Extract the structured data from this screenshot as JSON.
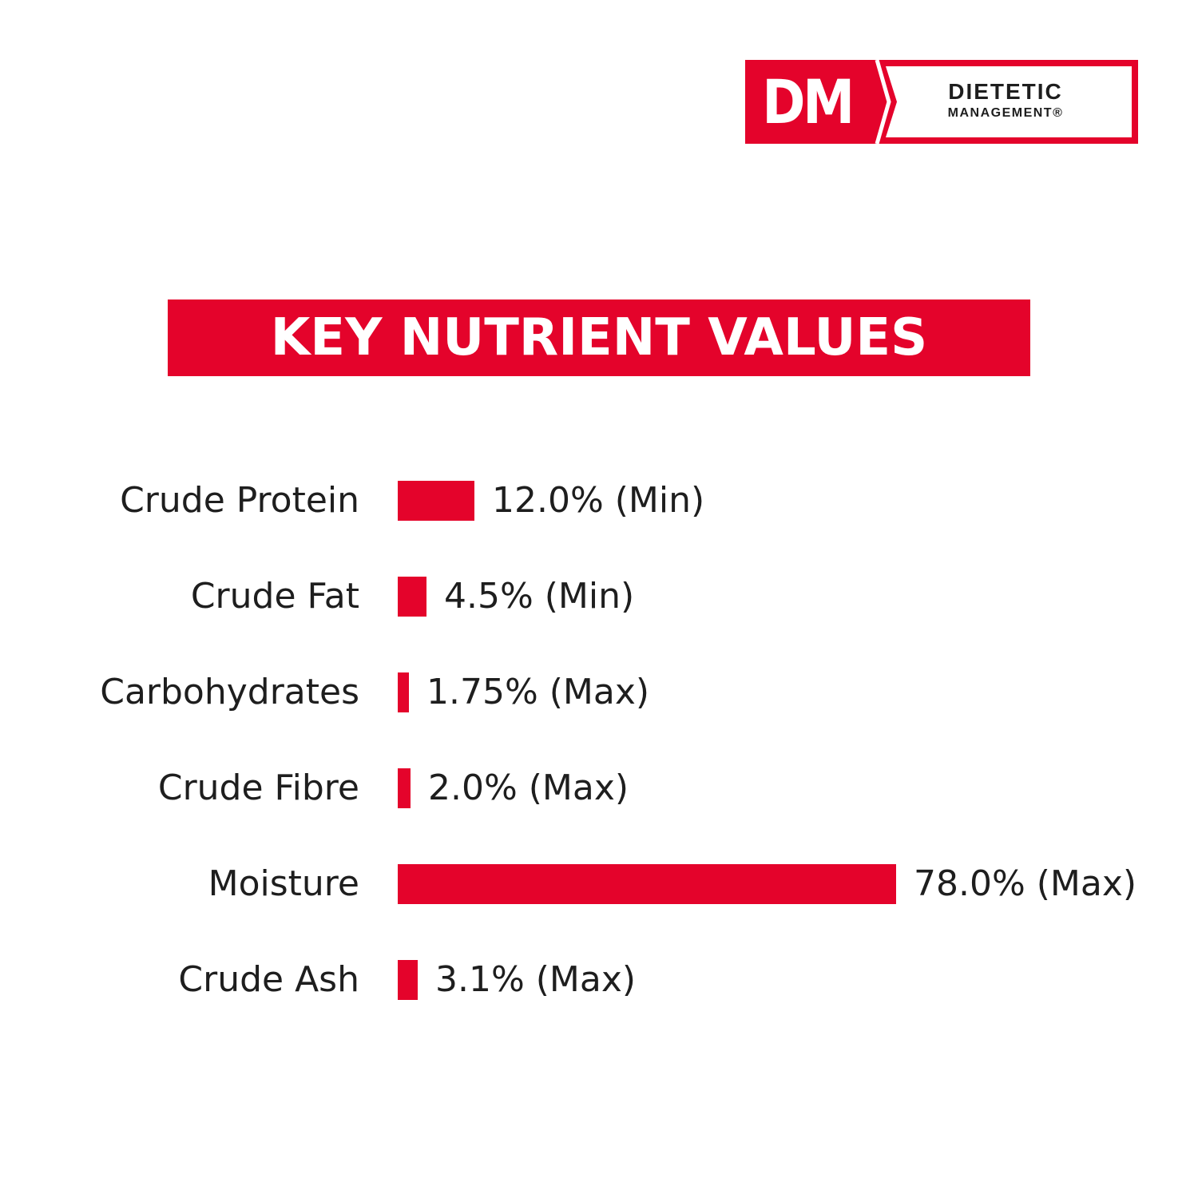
{
  "logo": {
    "mark": "DM",
    "line1": "DIETETIC",
    "line2": "MANAGEMENT®",
    "color": "#e4032b"
  },
  "title": "KEY NUTRIENT VALUES",
  "chart_data": {
    "type": "bar",
    "orientation": "horizontal",
    "title": "KEY NUTRIENT VALUES",
    "unit": "%",
    "categories": [
      "Crude Protein",
      "Crude Fat",
      "Carbohydrates",
      "Crude Fibre",
      "Moisture",
      "Crude Ash"
    ],
    "values": [
      12.0,
      4.5,
      1.75,
      2.0,
      78.0,
      3.1
    ],
    "value_labels": [
      "12.0% (Min)",
      "4.5% (Min)",
      "1.75% (Max)",
      "2.0% (Max)",
      "78.0% (Max)",
      "3.1% (Max)"
    ],
    "bar_color": "#e4032b",
    "grid": false,
    "legend": "none"
  }
}
